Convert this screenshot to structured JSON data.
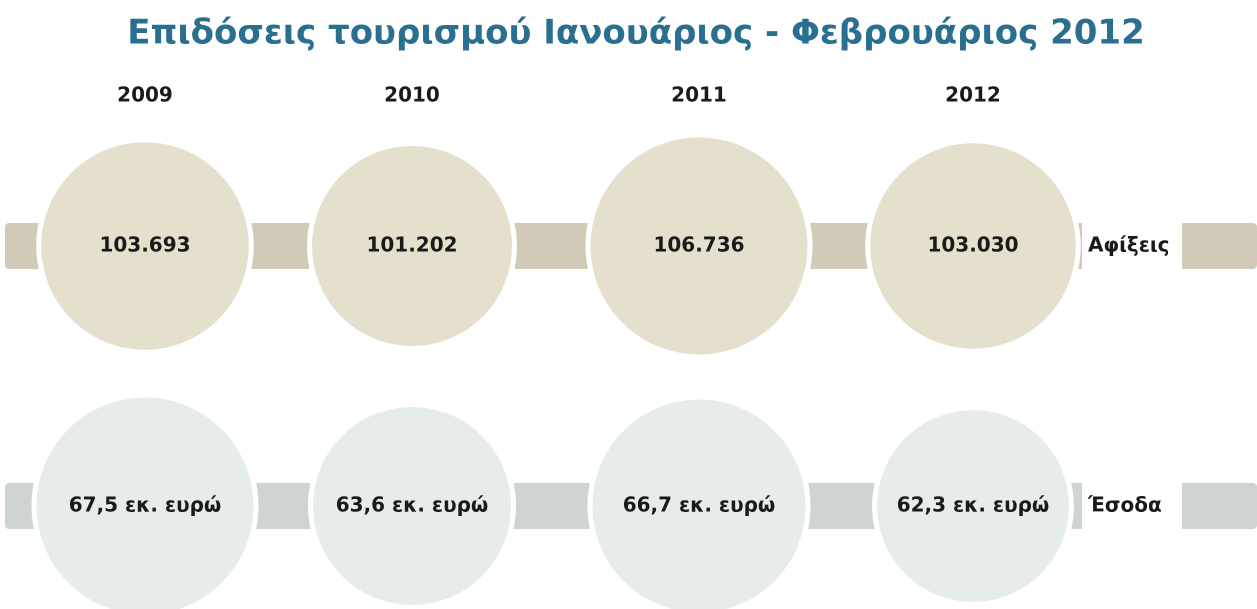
{
  "chart_data": {
    "type": "bubble",
    "title": "Επιδόσεις τουρισμού Ιανουάριος - Φεβρουάριος 2012",
    "categories": [
      "2009",
      "2010",
      "2011",
      "2012"
    ],
    "series": [
      {
        "name": "Αφίξεις",
        "color": "#e5dfce",
        "band_color": "#d1cab8",
        "values": [
          103693,
          101202,
          106736,
          103030
        ],
        "value_labels": [
          "103.693",
          "101.202",
          "106.736",
          "103.030"
        ]
      },
      {
        "name": "Έσοδα",
        "color": "#e6ede8",
        "band_color": "#ced4cf",
        "values": [
          67.5,
          63.6,
          66.7,
          62.3
        ],
        "value_labels": [
          "67,5 εκ. ευρώ",
          "63,6 εκ. ευρώ",
          "66,7 εκ. ευρώ",
          "62,3 εκ. ευρώ"
        ]
      }
    ]
  }
}
